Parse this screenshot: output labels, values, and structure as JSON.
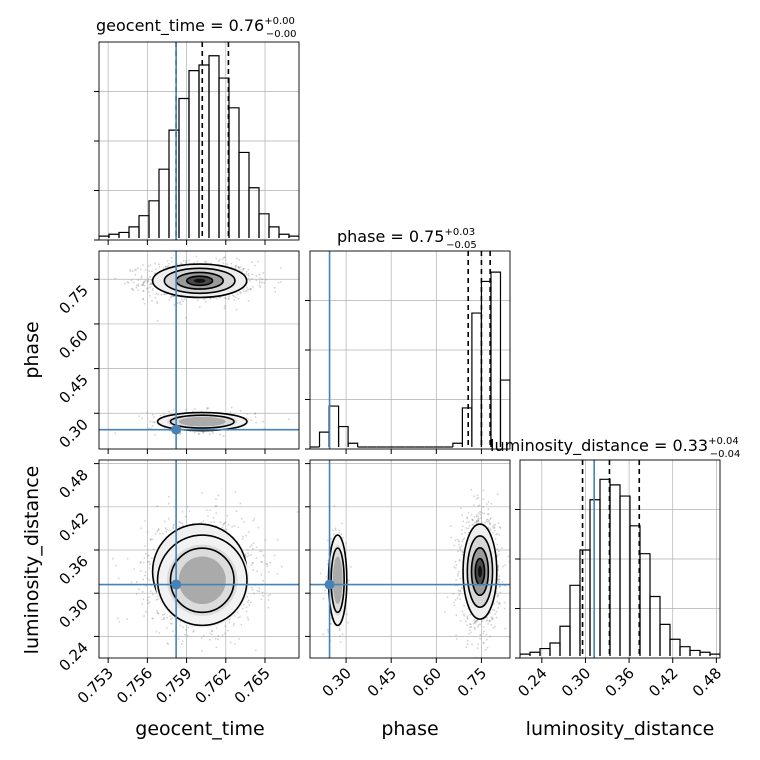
{
  "chart_data": {
    "type": "corner",
    "parameters": [
      "geocent_time",
      "phase",
      "luminosity_distance"
    ],
    "titles": {
      "geocent_time": {
        "name": "geocent_time",
        "median": "0.76",
        "plus": "+0.00",
        "minus": "−0.00"
      },
      "phase": {
        "name": "phase",
        "median": "0.75",
        "plus": "+0.03",
        "minus": "−0.05"
      },
      "luminosity_distance": {
        "name": "luminosity_distance",
        "median": "0.33",
        "plus": "+0.04",
        "minus": "−0.04"
      }
    },
    "axis_labels": {
      "geocent_time": "geocent_time",
      "phase": "phase",
      "luminosity_distance": "luminosity_distance"
    },
    "ranges": {
      "geocent_time": [
        0.7523,
        0.7676
      ],
      "phase": [
        0.18,
        0.845
      ],
      "luminosity_distance": [
        0.21,
        0.485
      ]
    },
    "ticks": {
      "geocent_time": [
        "0.753",
        "0.756",
        "0.759",
        "0.762",
        "0.765"
      ],
      "phase": [
        "0.30",
        "0.45",
        "0.60",
        "0.75"
      ],
      "luminosity_distance": [
        "0.24",
        "0.30",
        "0.36",
        "0.42",
        "0.48"
      ]
    },
    "injection": {
      "geocent_time": 0.7582,
      "phase": 0.245,
      "luminosity_distance": 0.312
    },
    "quantiles": {
      "geocent_time": [
        0.7582,
        0.7602,
        0.7622
      ],
      "phase": [
        0.706,
        0.75,
        0.779
      ],
      "luminosity_distance": [
        0.296,
        0.333,
        0.374
      ]
    },
    "histograms": {
      "geocent_time": [
        0.01,
        0.02,
        0.03,
        0.06,
        0.12,
        0.2,
        0.37,
        0.58,
        0.75,
        0.9,
        0.93,
        0.98,
        0.86,
        0.7,
        0.46,
        0.27,
        0.13,
        0.06,
        0.02,
        0.01
      ],
      "phase": [
        0.0,
        0.08,
        0.22,
        0.11,
        0.02,
        0.0,
        0.0,
        0.0,
        0.0,
        0.0,
        0.0,
        0.0,
        0.0,
        0.0,
        0.0,
        0.02,
        0.21,
        0.72,
        0.89,
        0.94,
        0.36
      ],
      "luminosity_distance": [
        0.01,
        0.02,
        0.04,
        0.07,
        0.16,
        0.38,
        0.57,
        0.84,
        0.95,
        0.92,
        0.86,
        0.7,
        0.55,
        0.32,
        0.17,
        0.09,
        0.05,
        0.03,
        0.02,
        0.01
      ]
    },
    "modes": [
      {
        "geocent_time": 0.76,
        "phase": 0.745,
        "luminosity_distance": 0.33,
        "sd_time": 0.0018,
        "sd_phase": 0.028,
        "sd_dist": 0.033,
        "weight": 0.84
      },
      {
        "geocent_time": 0.7602,
        "phase": 0.272,
        "luminosity_distance": 0.318,
        "sd_time": 0.0018,
        "sd_phase": 0.016,
        "sd_dist": 0.033,
        "weight": 0.16
      }
    ],
    "grid": true,
    "colors": {
      "truth": "#4682b4",
      "hist": "#000000",
      "contour": "#000000",
      "grid": "#b0b0b0",
      "points": "#7f7f7f"
    }
  }
}
